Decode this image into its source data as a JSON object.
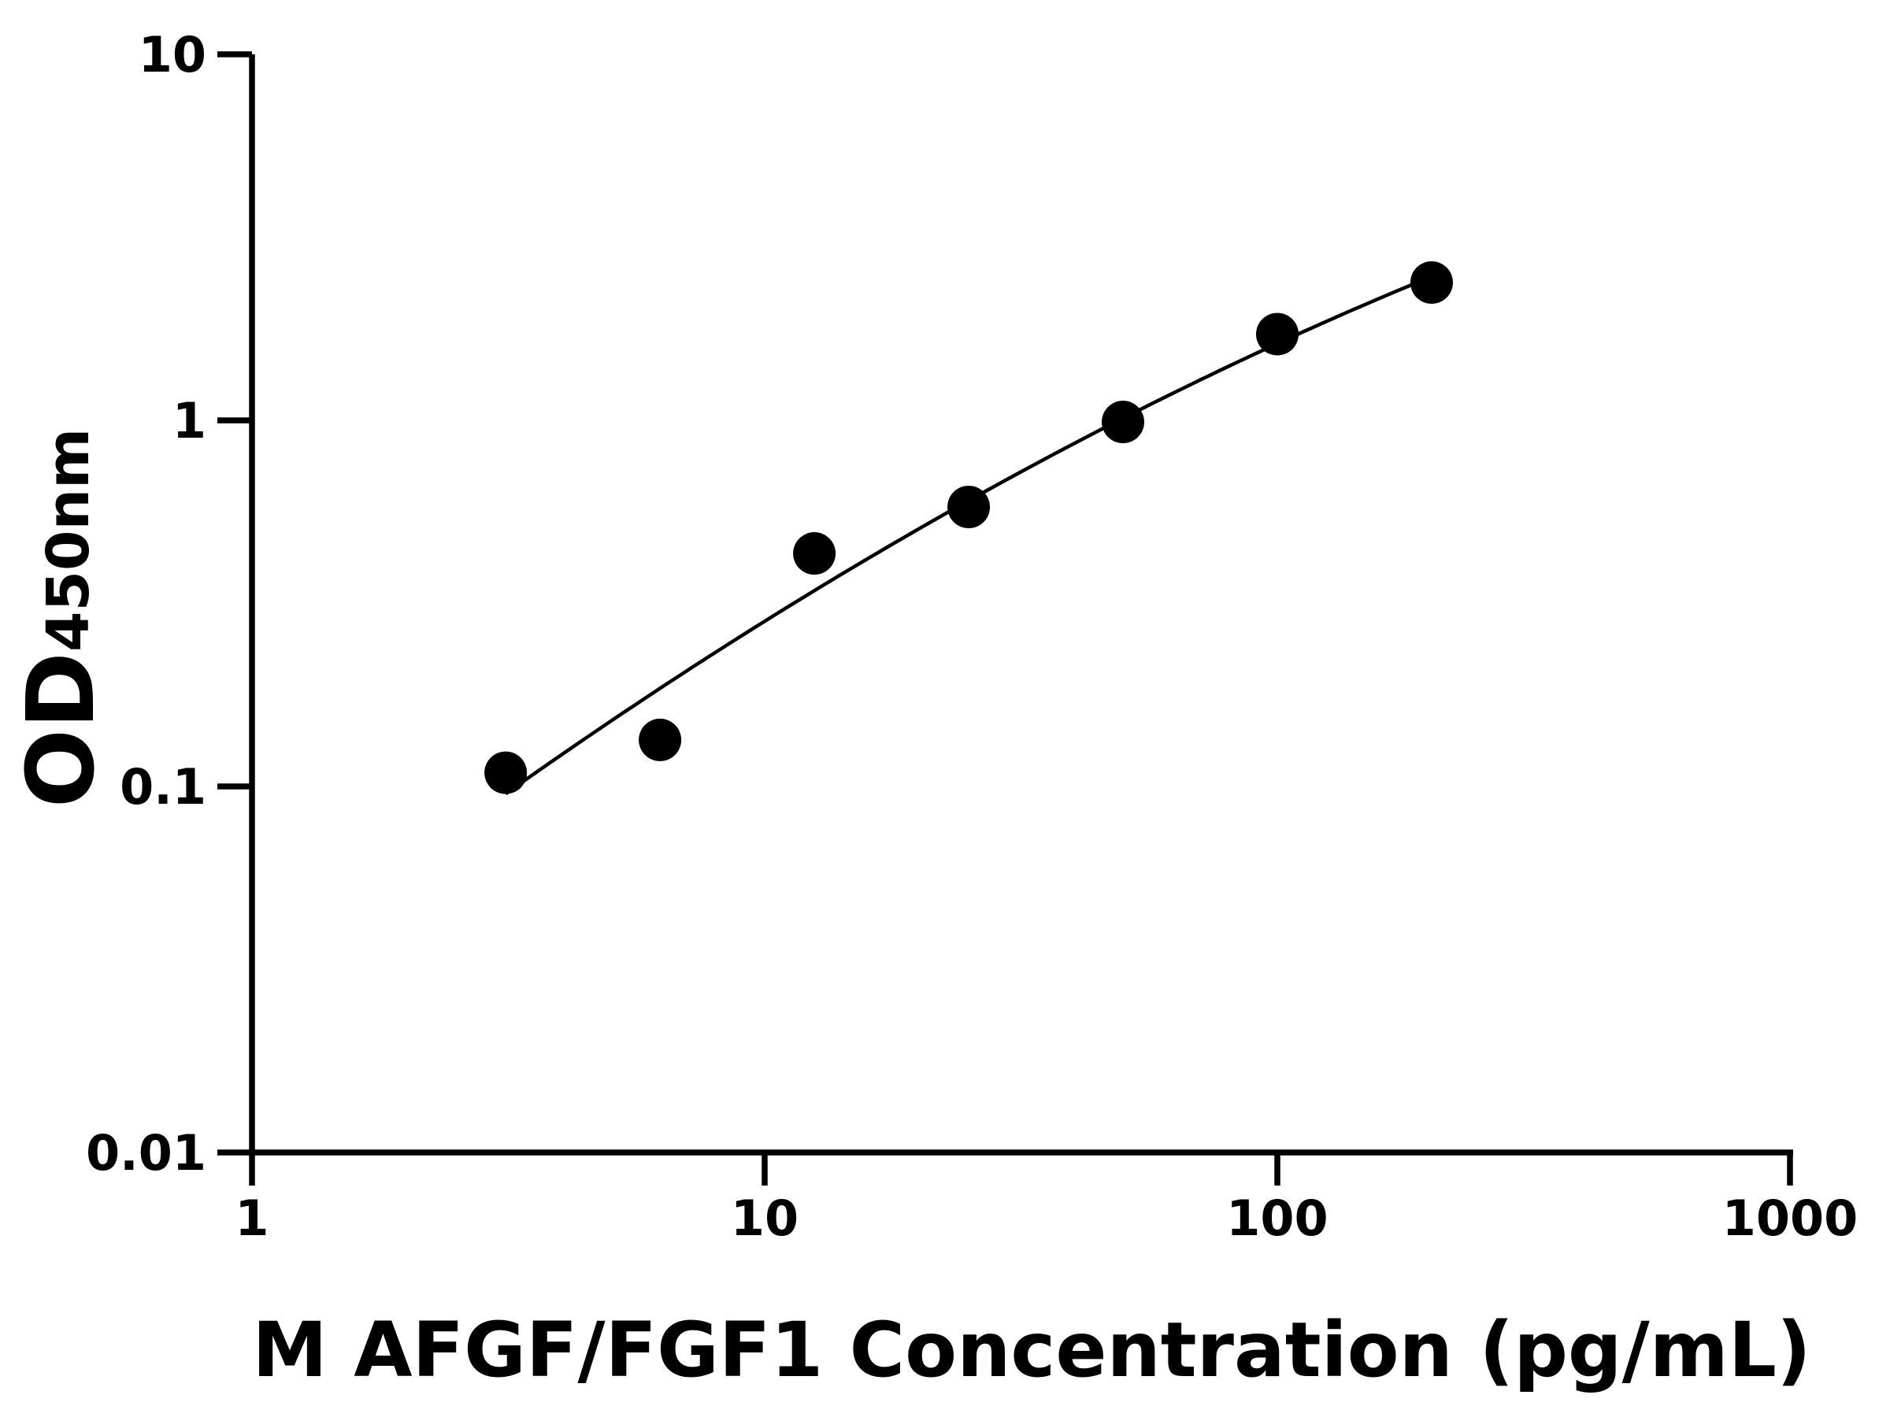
{
  "chart_data": {
    "type": "scatter",
    "title": "",
    "xlabel": "M AFGF/FGF1 Concentration (pg/mL)",
    "ylabel_main": "OD",
    "ylabel_sub": "450nm",
    "x_scale": "log",
    "y_scale": "log",
    "xlim": [
      1,
      1000
    ],
    "ylim": [
      0.01,
      10
    ],
    "x_ticks": [
      1,
      10,
      100,
      1000
    ],
    "x_tick_labels": [
      "1",
      "10",
      "100",
      "1000"
    ],
    "y_ticks": [
      0.01,
      0.1,
      1,
      10
    ],
    "y_tick_labels": [
      "0.01",
      "0.1",
      "1",
      "10"
    ],
    "grid": false,
    "legend": "none",
    "colors": {
      "points": "#000000",
      "curve": "#000000",
      "axes": "#000000"
    },
    "series": [
      {
        "x": [
          3.125,
          6.25,
          12.5,
          25,
          50,
          100,
          200
        ],
        "y": [
          0.109,
          0.134,
          0.433,
          0.58,
          0.99,
          1.72,
          2.38
        ],
        "fit_curve": true
      }
    ]
  }
}
